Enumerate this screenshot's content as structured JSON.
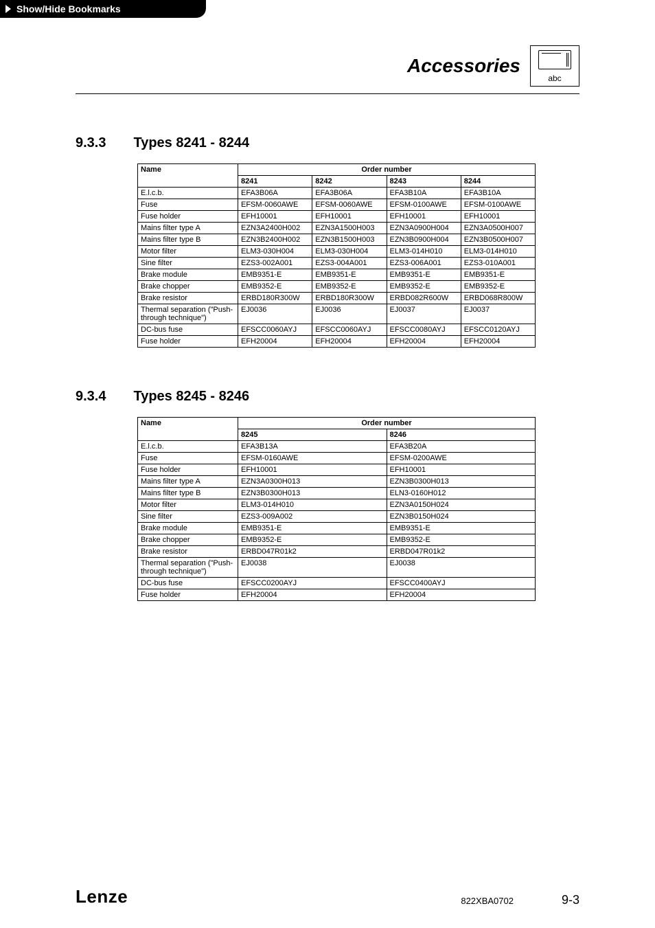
{
  "bookmark_label": "Show/Hide Bookmarks",
  "header": {
    "title": "Accessories",
    "abc_label": "abc"
  },
  "section1": {
    "number": "9.3.3",
    "title": "Types 8241 - 8244",
    "name_header": "Name",
    "order_header": "Order number",
    "cols": [
      "8241",
      "8242",
      "8243",
      "8244"
    ],
    "rows": [
      {
        "name": "E.l.c.b.",
        "v": [
          "EFA3B06A",
          "EFA3B06A",
          "EFA3B10A",
          "EFA3B10A"
        ]
      },
      {
        "name": "Fuse",
        "v": [
          "EFSM-0060AWE",
          "EFSM-0060AWE",
          "EFSM-0100AWE",
          "EFSM-0100AWE"
        ]
      },
      {
        "name": "Fuse holder",
        "v": [
          "EFH10001",
          "EFH10001",
          "EFH10001",
          "EFH10001"
        ]
      },
      {
        "name": "Mains filter type A",
        "v": [
          "EZN3A2400H002",
          "EZN3A1500H003",
          "EZN3A0900H004",
          "EZN3A0500H007"
        ]
      },
      {
        "name": "Mains filter type B",
        "v": [
          "EZN3B2400H002",
          "EZN3B1500H003",
          "EZN3B0900H004",
          "EZN3B0500H007"
        ]
      },
      {
        "name": "Motor filter",
        "v": [
          "ELM3-030H004",
          "ELM3-030H004",
          "ELM3-014H010",
          "ELM3-014H010"
        ]
      },
      {
        "name": "Sine filter",
        "v": [
          "EZS3-002A001",
          "EZS3-004A001",
          "EZS3-006A001",
          "EZS3-010A001"
        ]
      },
      {
        "name": "Brake module",
        "v": [
          "EMB9351-E",
          "EMB9351-E",
          "EMB9351-E",
          "EMB9351-E"
        ]
      },
      {
        "name": "Brake chopper",
        "v": [
          "EMB9352-E",
          "EMB9352-E",
          "EMB9352-E",
          "EMB9352-E"
        ]
      },
      {
        "name": "Brake resistor",
        "v": [
          "ERBD180R300W",
          "ERBD180R300W",
          "ERBD082R600W",
          "ERBD068R800W"
        ]
      },
      {
        "name": "Thermal separation (\"Push-through technique\")",
        "v": [
          "EJ0036",
          "EJ0036",
          "EJ0037",
          "EJ0037"
        ]
      },
      {
        "name": "DC-bus fuse",
        "v": [
          "EFSCC0060AYJ",
          "EFSCC0060AYJ",
          "EFSCC0080AYJ",
          "EFSCC0120AYJ"
        ]
      },
      {
        "name": "Fuse holder",
        "v": [
          "EFH20004",
          "EFH20004",
          "EFH20004",
          "EFH20004"
        ]
      }
    ]
  },
  "section2": {
    "number": "9.3.4",
    "title": "Types 8245 - 8246",
    "name_header": "Name",
    "order_header": "Order number",
    "cols": [
      "8245",
      "8246"
    ],
    "rows": [
      {
        "name": "E.l.c.b.",
        "v": [
          "EFA3B13A",
          "EFA3B20A"
        ]
      },
      {
        "name": "Fuse",
        "v": [
          "EFSM-0160AWE",
          "EFSM-0200AWE"
        ]
      },
      {
        "name": "Fuse holder",
        "v": [
          "EFH10001",
          "EFH10001"
        ]
      },
      {
        "name": "Mains filter type A",
        "v": [
          "EZN3A0300H013",
          "EZN3B0300H013"
        ]
      },
      {
        "name": "Mains filter type B",
        "v": [
          "EZN3B0300H013",
          "ELN3-0160H012"
        ]
      },
      {
        "name": "Motor filter",
        "v": [
          "ELM3-014H010",
          "EZN3A0150H024"
        ]
      },
      {
        "name": "Sine filter",
        "v": [
          "EZS3-009A002",
          "EZN3B0150H024"
        ]
      },
      {
        "name": "Brake module",
        "v": [
          "EMB9351-E",
          "EMB9351-E"
        ]
      },
      {
        "name": "Brake chopper",
        "v": [
          "EMB9352-E",
          "EMB9352-E"
        ]
      },
      {
        "name": "Brake resistor",
        "v": [
          "ERBD047R01k2",
          "ERBD047R01k2"
        ]
      },
      {
        "name": "Thermal separation (\"Push-through technique\")",
        "v": [
          "EJ0038",
          "EJ0038"
        ]
      },
      {
        "name": "DC-bus fuse",
        "v": [
          "EFSCC0200AYJ",
          "EFSCC0400AYJ"
        ]
      },
      {
        "name": "Fuse holder",
        "v": [
          "EFH20004",
          "EFH20004"
        ]
      }
    ]
  },
  "footer": {
    "logo": "Lenze",
    "doc_code": "822XBA0702",
    "page_section": "9-",
    "page_num": "3"
  }
}
